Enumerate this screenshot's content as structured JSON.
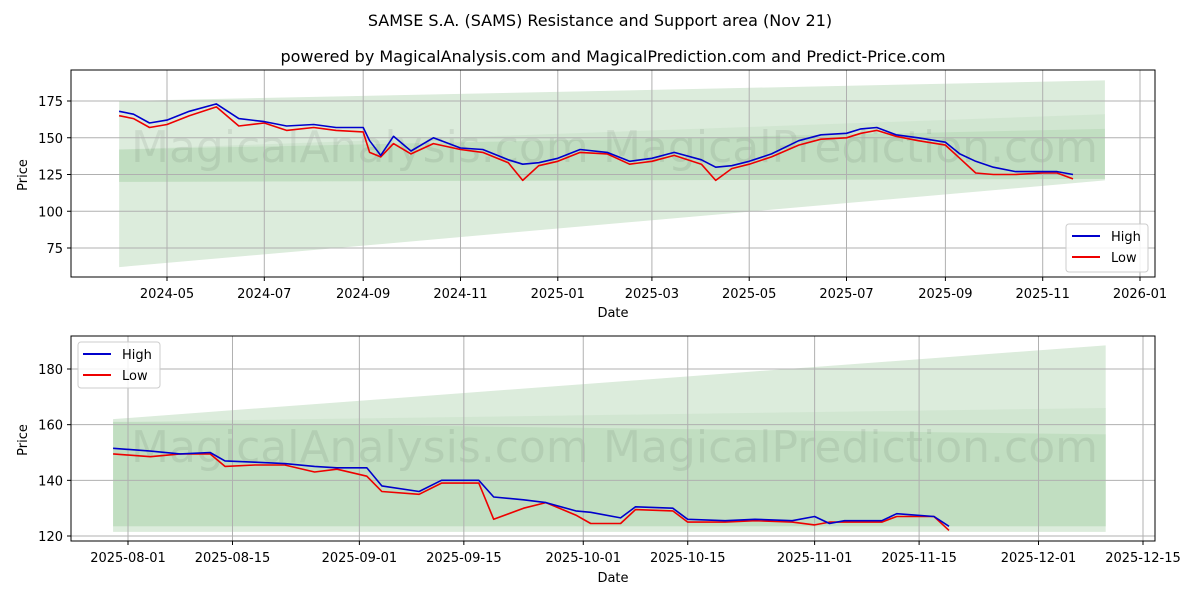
{
  "header": {
    "title": "SAMSE S.A. (SAMS) Resistance and Support area (Nov 21)",
    "subtitle": "powered by MagicalAnalysis.com and MagicalPrediction.com and Predict-Price.com"
  },
  "watermarks": [
    "MagicalAnalysis.com",
    "MagicalPrediction.com"
  ],
  "colors": {
    "high": "#0000cc",
    "low": "#ee0000",
    "band_light": "#dcecdc",
    "band_mid": "#c8e2c8",
    "band_dark": "#b5d9b5",
    "grid": "#b0b0b0"
  },
  "chart_data": [
    {
      "type": "line",
      "title": "",
      "xlabel": "Date",
      "ylabel": "Price",
      "ylim": [
        55,
        195
      ],
      "grid": true,
      "legend_position": "lower right",
      "x_ticks": [
        "2024-05",
        "2024-07",
        "2024-09",
        "2024-11",
        "2025-01",
        "2025-03",
        "2025-05",
        "2025-07",
        "2025-09",
        "2025-11",
        "2026-01"
      ],
      "y_ticks": [
        75,
        100,
        125,
        150,
        175
      ],
      "legend": [
        "High",
        "Low"
      ],
      "series": [
        {
          "name": "High",
          "x": [
            "2024-04-01",
            "2024-04-10",
            "2024-04-20",
            "2024-05-01",
            "2024-05-15",
            "2024-06-01",
            "2024-06-15",
            "2024-07-01",
            "2024-07-15",
            "2024-08-01",
            "2024-08-15",
            "2024-09-01",
            "2024-09-05",
            "2024-09-12",
            "2024-09-20",
            "2024-10-01",
            "2024-10-15",
            "2024-11-01",
            "2024-11-15",
            "2024-12-01",
            "2024-12-10",
            "2024-12-20",
            "2025-01-01",
            "2025-01-15",
            "2025-02-01",
            "2025-02-15",
            "2025-03-01",
            "2025-03-15",
            "2025-04-01",
            "2025-04-10",
            "2025-04-20",
            "2025-05-01",
            "2025-05-15",
            "2025-06-01",
            "2025-06-15",
            "2025-07-01",
            "2025-07-10",
            "2025-07-20",
            "2025-08-01",
            "2025-08-15",
            "2025-09-01",
            "2025-09-10",
            "2025-09-20",
            "2025-10-01",
            "2025-10-15",
            "2025-11-01",
            "2025-11-10",
            "2025-11-20"
          ],
          "values": [
            168,
            166,
            160,
            162,
            168,
            173,
            163,
            161,
            158,
            159,
            157,
            157,
            148,
            138,
            151,
            141,
            150,
            143,
            142,
            135,
            132,
            133,
            136,
            142,
            140,
            134,
            136,
            140,
            135,
            130,
            131,
            134,
            139,
            148,
            152,
            153,
            156,
            157,
            152,
            150,
            147,
            139,
            134,
            130,
            127,
            127,
            127,
            125
          ]
        },
        {
          "name": "Low",
          "x": [
            "2024-04-01",
            "2024-04-10",
            "2024-04-20",
            "2024-05-01",
            "2024-05-15",
            "2024-06-01",
            "2024-06-15",
            "2024-07-01",
            "2024-07-15",
            "2024-08-01",
            "2024-08-15",
            "2024-09-01",
            "2024-09-05",
            "2024-09-12",
            "2024-09-20",
            "2024-10-01",
            "2024-10-15",
            "2024-11-01",
            "2024-11-15",
            "2024-12-01",
            "2024-12-10",
            "2024-12-20",
            "2025-01-01",
            "2025-01-15",
            "2025-02-01",
            "2025-02-15",
            "2025-03-01",
            "2025-03-15",
            "2025-04-01",
            "2025-04-10",
            "2025-04-20",
            "2025-05-01",
            "2025-05-15",
            "2025-06-01",
            "2025-06-15",
            "2025-07-01",
            "2025-07-10",
            "2025-07-20",
            "2025-08-01",
            "2025-08-15",
            "2025-09-01",
            "2025-09-10",
            "2025-09-20",
            "2025-10-01",
            "2025-10-15",
            "2025-11-01",
            "2025-11-10",
            "2025-11-20"
          ],
          "values": [
            165,
            163,
            157,
            159,
            165,
            171,
            158,
            160,
            155,
            157,
            155,
            154,
            140,
            137,
            146,
            139,
            146,
            142,
            140,
            133,
            121,
            131,
            134,
            140,
            139,
            132,
            134,
            138,
            132,
            121,
            129,
            132,
            137,
            145,
            149,
            150,
            153,
            155,
            151,
            148,
            145,
            136,
            126,
            125,
            125,
            126,
            126,
            122
          ]
        }
      ],
      "bands": [
        {
          "name": "outer_support_resistance",
          "x": [
            "2024-04-01",
            "2025-12-10"
          ],
          "upper": [
            175,
            189
          ],
          "lower": [
            62,
            121
          ]
        },
        {
          "name": "mid_band",
          "x": [
            "2024-04-01",
            "2025-12-10"
          ],
          "upper": [
            142,
            166
          ],
          "lower": [
            120,
            122
          ]
        },
        {
          "name": "inner_band",
          "x": [
            "2024-04-01",
            "2025-12-10"
          ],
          "upper": [
            142,
            156
          ],
          "lower": [
            120,
            122
          ]
        }
      ]
    },
    {
      "type": "line",
      "title": "",
      "xlabel": "Date",
      "ylabel": "Price",
      "ylim": [
        118,
        192
      ],
      "grid": true,
      "legend_position": "upper left",
      "x_ticks": [
        "2025-08-01",
        "2025-08-15",
        "2025-09-01",
        "2025-09-15",
        "2025-10-01",
        "2025-10-15",
        "2025-11-01",
        "2025-11-15",
        "2025-12-01",
        "2025-12-15"
      ],
      "y_ticks": [
        120,
        140,
        160,
        180
      ],
      "legend": [
        "High",
        "Low"
      ],
      "series": [
        {
          "name": "High",
          "x": [
            "2025-07-30",
            "2025-08-04",
            "2025-08-08",
            "2025-08-12",
            "2025-08-14",
            "2025-08-18",
            "2025-08-22",
            "2025-08-26",
            "2025-08-29",
            "2025-09-02",
            "2025-09-04",
            "2025-09-09",
            "2025-09-12",
            "2025-09-17",
            "2025-09-19",
            "2025-09-23",
            "2025-09-26",
            "2025-09-30",
            "2025-10-02",
            "2025-10-06",
            "2025-10-08",
            "2025-10-13",
            "2025-10-15",
            "2025-10-20",
            "2025-10-24",
            "2025-10-29",
            "2025-11-01",
            "2025-11-03",
            "2025-11-05",
            "2025-11-10",
            "2025-11-12",
            "2025-11-17",
            "2025-11-19"
          ],
          "values": [
            151.5,
            150.5,
            149.5,
            150,
            147,
            146.5,
            146,
            145,
            144.5,
            144.5,
            138,
            136,
            140,
            140,
            134,
            133,
            132,
            129,
            128.5,
            126.5,
            130.5,
            130,
            126,
            125.5,
            126,
            125.5,
            127,
            124.5,
            125.5,
            125.5,
            128,
            127,
            123.5
          ]
        },
        {
          "name": "Low",
          "x": [
            "2025-07-30",
            "2025-08-04",
            "2025-08-08",
            "2025-08-12",
            "2025-08-14",
            "2025-08-18",
            "2025-08-22",
            "2025-08-26",
            "2025-08-29",
            "2025-09-02",
            "2025-09-04",
            "2025-09-09",
            "2025-09-12",
            "2025-09-17",
            "2025-09-19",
            "2025-09-23",
            "2025-09-26",
            "2025-09-30",
            "2025-10-02",
            "2025-10-06",
            "2025-10-08",
            "2025-10-13",
            "2025-10-15",
            "2025-10-20",
            "2025-10-24",
            "2025-10-29",
            "2025-11-01",
            "2025-11-03",
            "2025-11-05",
            "2025-11-10",
            "2025-11-12",
            "2025-11-17",
            "2025-11-19"
          ],
          "values": [
            149.5,
            148.5,
            149.5,
            149.5,
            145,
            145.5,
            145.5,
            143,
            144,
            141.5,
            136,
            135,
            139,
            139,
            126,
            130,
            132,
            127.5,
            124.5,
            124.5,
            129.5,
            129,
            125,
            125,
            125.5,
            125,
            124,
            125,
            125,
            125,
            127,
            127,
            122
          ]
        }
      ],
      "bands": [
        {
          "name": "outer_support_resistance",
          "x": [
            "2025-07-30",
            "2025-12-10"
          ],
          "upper": [
            162,
            188.5
          ],
          "lower": [
            121.5,
            121.5
          ]
        },
        {
          "name": "mid_band",
          "x": [
            "2025-07-30",
            "2025-12-10"
          ],
          "upper": [
            161,
            166
          ],
          "lower": [
            123.5,
            123.5
          ]
        },
        {
          "name": "inner_band",
          "x": [
            "2025-07-30",
            "2025-12-10"
          ],
          "upper": [
            161,
            156.5
          ],
          "lower": [
            123.5,
            123.5
          ]
        }
      ]
    }
  ]
}
